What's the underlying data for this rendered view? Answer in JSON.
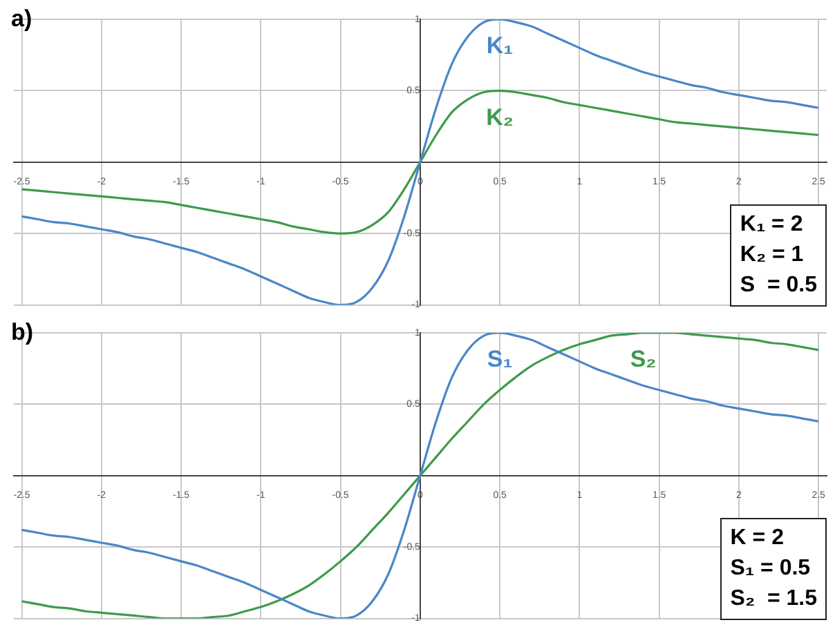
{
  "chart_data": [
    {
      "type": "line",
      "title": "a)",
      "x": [
        -2.5,
        -2.4,
        -2.3,
        -2.2,
        -2.1,
        -2,
        -1.9,
        -1.8,
        -1.7,
        -1.6,
        -1.5,
        -1.4,
        -1.3,
        -1.2,
        -1.1,
        -1,
        -0.9,
        -0.8,
        -0.7,
        -0.6,
        -0.5,
        -0.4,
        -0.3,
        -0.2,
        -0.1,
        0,
        0.1,
        0.2,
        0.3,
        0.4,
        0.5,
        0.6,
        0.7,
        0.8,
        0.9,
        1,
        1.1,
        1.2,
        1.3,
        1.4,
        1.5,
        1.6,
        1.7,
        1.8,
        1.9,
        2,
        2.1,
        2.2,
        2.3,
        2.4,
        2.5
      ],
      "series": [
        {
          "name": "K₁",
          "color": "#4a86c8",
          "values": [
            -0.38,
            -0.4,
            -0.42,
            -0.43,
            -0.45,
            -0.47,
            -0.49,
            -0.52,
            -0.54,
            -0.57,
            -0.6,
            -0.63,
            -0.67,
            -0.71,
            -0.75,
            -0.8,
            -0.85,
            -0.9,
            -0.95,
            -0.98,
            -1,
            -0.98,
            -0.88,
            -0.69,
            -0.38,
            0,
            0.38,
            0.69,
            0.88,
            0.98,
            1,
            0.98,
            0.95,
            0.9,
            0.85,
            0.8,
            0.75,
            0.71,
            0.67,
            0.63,
            0.6,
            0.57,
            0.54,
            0.52,
            0.49,
            0.47,
            0.45,
            0.43,
            0.42,
            0.4,
            0.38
          ]
        },
        {
          "name": "K₂",
          "color": "#3f9a4c",
          "values": [
            -0.19,
            -0.2,
            -0.21,
            -0.22,
            -0.23,
            -0.24,
            -0.25,
            -0.26,
            -0.27,
            -0.28,
            -0.3,
            -0.32,
            -0.34,
            -0.36,
            -0.38,
            -0.4,
            -0.42,
            -0.45,
            -0.47,
            -0.49,
            -0.5,
            -0.49,
            -0.44,
            -0.35,
            -0.19,
            0,
            0.19,
            0.35,
            0.44,
            0.49,
            0.5,
            0.49,
            0.47,
            0.45,
            0.42,
            0.4,
            0.38,
            0.36,
            0.34,
            0.32,
            0.3,
            0.28,
            0.27,
            0.26,
            0.25,
            0.24,
            0.23,
            0.22,
            0.21,
            0.2,
            0.19
          ]
        }
      ],
      "xlim": [
        -2.55,
        2.55
      ],
      "ylim": [
        -1,
        1
      ],
      "xticks": [
        -2.5,
        -2,
        -1.5,
        -1,
        -0.5,
        0,
        0.5,
        1,
        1.5,
        2,
        2.5
      ],
      "yticks": [
        -1,
        -0.5,
        0.5,
        1
      ],
      "grid": true,
      "annotations": [
        "K₁ = 2",
        "K₂ = 1",
        "S  = 0.5"
      ]
    },
    {
      "type": "line",
      "title": "b)",
      "x": [
        -2.5,
        -2.4,
        -2.3,
        -2.2,
        -2.1,
        -2,
        -1.9,
        -1.8,
        -1.7,
        -1.6,
        -1.5,
        -1.4,
        -1.3,
        -1.2,
        -1.1,
        -1,
        -0.9,
        -0.8,
        -0.7,
        -0.6,
        -0.5,
        -0.4,
        -0.3,
        -0.2,
        -0.1,
        0,
        0.1,
        0.2,
        0.3,
        0.4,
        0.5,
        0.6,
        0.7,
        0.8,
        0.9,
        1,
        1.1,
        1.2,
        1.3,
        1.4,
        1.5,
        1.6,
        1.7,
        1.8,
        1.9,
        2,
        2.1,
        2.2,
        2.3,
        2.4,
        2.5
      ],
      "series": [
        {
          "name": "S₁",
          "color": "#4a86c8",
          "values": [
            -0.38,
            -0.4,
            -0.42,
            -0.43,
            -0.45,
            -0.47,
            -0.49,
            -0.52,
            -0.54,
            -0.57,
            -0.6,
            -0.63,
            -0.67,
            -0.71,
            -0.75,
            -0.8,
            -0.85,
            -0.9,
            -0.95,
            -0.98,
            -1,
            -0.98,
            -0.88,
            -0.69,
            -0.38,
            0,
            0.38,
            0.69,
            0.88,
            0.98,
            1,
            0.98,
            0.95,
            0.9,
            0.85,
            0.8,
            0.75,
            0.71,
            0.67,
            0.63,
            0.6,
            0.57,
            0.54,
            0.52,
            0.49,
            0.47,
            0.45,
            0.43,
            0.42,
            0.4,
            0.38
          ]
        },
        {
          "name": "S₂",
          "color": "#3f9a4c",
          "values": [
            -0.88,
            -0.9,
            -0.92,
            -0.93,
            -0.95,
            -0.96,
            -0.97,
            -0.98,
            -0.99,
            -1,
            -1,
            -1,
            -0.99,
            -0.98,
            -0.95,
            -0.92,
            -0.88,
            -0.83,
            -0.77,
            -0.69,
            -0.6,
            -0.5,
            -0.38,
            -0.26,
            -0.13,
            0,
            0.13,
            0.26,
            0.38,
            0.5,
            0.6,
            0.69,
            0.77,
            0.83,
            0.88,
            0.92,
            0.95,
            0.98,
            0.99,
            1,
            1,
            1,
            0.99,
            0.98,
            0.97,
            0.96,
            0.95,
            0.93,
            0.92,
            0.9,
            0.88
          ]
        }
      ],
      "xlim": [
        -2.55,
        2.55
      ],
      "ylim": [
        -1,
        1
      ],
      "xticks": [
        -2.5,
        -2,
        -1.5,
        -1,
        -0.5,
        0,
        0.5,
        1,
        1.5,
        2,
        2.5
      ],
      "yticks": [
        -1,
        -0.5,
        0.5,
        1
      ],
      "grid": true,
      "annotations": [
        "K = 2",
        "S₁ = 0.5",
        "S₂  = 1.5"
      ]
    }
  ]
}
